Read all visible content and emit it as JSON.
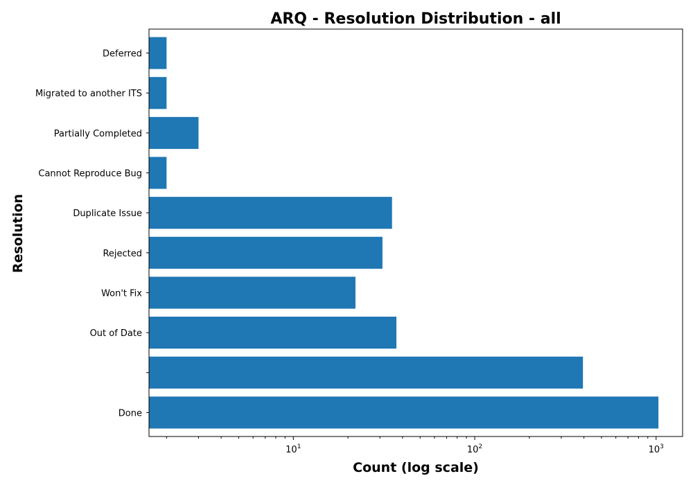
{
  "chart_data": {
    "type": "bar",
    "orientation": "horizontal",
    "title": "ARQ - Resolution Distribution - all",
    "xlabel": "Count (log scale)",
    "ylabel": "Resolution",
    "x_scale": "log",
    "xlim": [
      1.6,
      1400
    ],
    "x_ticks": [
      {
        "value": 10,
        "base": "10",
        "exp": "1"
      },
      {
        "value": 100,
        "base": "10",
        "exp": "2"
      },
      {
        "value": 1000,
        "base": "10",
        "exp": "3"
      }
    ],
    "bar_color": "#1f77b4",
    "categories": [
      "Done",
      "",
      "Out of Date",
      "Won't Fix",
      "Rejected",
      "Duplicate Issue",
      "Cannot Reproduce Bug",
      "Partially Completed",
      "Migrated to another ITS",
      "Deferred"
    ],
    "values": [
      1030,
      395,
      37,
      22,
      31,
      35,
      2,
      3,
      2,
      2
    ],
    "grid": false,
    "legend": "none"
  }
}
